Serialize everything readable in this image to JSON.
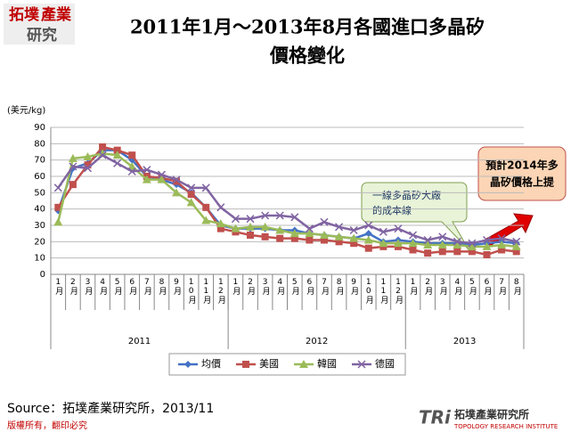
{
  "chart_data": {
    "type": "line",
    "title_lines": [
      "2011年1月～2013年8月各國進口多晶矽",
      "價格變化"
    ],
    "y_label": "(美元/kg)",
    "categories": [
      "1月",
      "2月",
      "3月",
      "4月",
      "5月",
      "6月",
      "7月",
      "8月",
      "9月",
      "10月",
      "11月",
      "12月",
      "1月",
      "2月",
      "3月",
      "4月",
      "5月",
      "6月",
      "7月",
      "8月",
      "9月",
      "10月",
      "11月",
      "12月",
      "1月",
      "2月",
      "3月",
      "4月",
      "5月",
      "6月",
      "7月",
      "8月"
    ],
    "x_groups": [
      "2011",
      "2012",
      "2013"
    ],
    "ylim": [
      0,
      90
    ],
    "yticks": [
      0,
      10,
      20,
      30,
      40,
      50,
      60,
      70,
      80,
      90
    ],
    "grid": true,
    "series": [
      {
        "name": "均價",
        "color": "#4472c4",
        "marker": "diamond",
        "values": [
          39,
          65,
          68,
          76,
          76,
          70,
          60,
          58,
          55,
          50,
          41,
          30,
          28,
          28,
          28,
          27,
          27,
          25,
          24,
          23,
          22,
          25,
          20,
          21,
          20,
          19,
          19,
          19,
          18,
          19,
          20,
          19
        ]
      },
      {
        "name": "美國",
        "color": "#c0504d",
        "marker": "square",
        "values": [
          41,
          55,
          67,
          78,
          76,
          73,
          60,
          59,
          57,
          49,
          41,
          28,
          26,
          24,
          23,
          22,
          22,
          21,
          21,
          20,
          19,
          16,
          17,
          17,
          15,
          13,
          14,
          14,
          14,
          12,
          15,
          14
        ]
      },
      {
        "name": "韓國",
        "color": "#9bbb59",
        "marker": "triangle",
        "values": [
          32,
          71,
          72,
          74,
          73,
          66,
          58,
          58,
          50,
          44,
          33,
          31,
          28,
          29,
          29,
          27,
          25,
          25,
          24,
          23,
          22,
          21,
          19,
          19,
          19,
          18,
          18,
          18,
          17,
          17,
          18,
          17
        ]
      },
      {
        "name": "德國",
        "color": "#8064a2",
        "marker": "x",
        "values": [
          53,
          66,
          65,
          73,
          68,
          63,
          64,
          61,
          58,
          53,
          53,
          41,
          34,
          34,
          36,
          36,
          35,
          28,
          32,
          29,
          27,
          30,
          26,
          28,
          24,
          21,
          23,
          20,
          19,
          21,
          22,
          20
        ]
      }
    ],
    "annotations": [
      {
        "lines": [
          "一線多晶矽大廠",
          "的成本線"
        ]
      },
      {
        "lines": [
          "預計2014年多",
          "晶矽價格上提"
        ]
      }
    ]
  },
  "logo": {
    "lines": [
      "拓墣",
      "產業",
      "研究"
    ]
  },
  "source": "Source：拓墣產業研究所，2013/11",
  "footer": "版權所有，翻印必究",
  "brand": {
    "mark": "TRi",
    "name": "拓墣產業研究所",
    "english": "TOPOLOGY RESEARCH INSTITUTE"
  }
}
